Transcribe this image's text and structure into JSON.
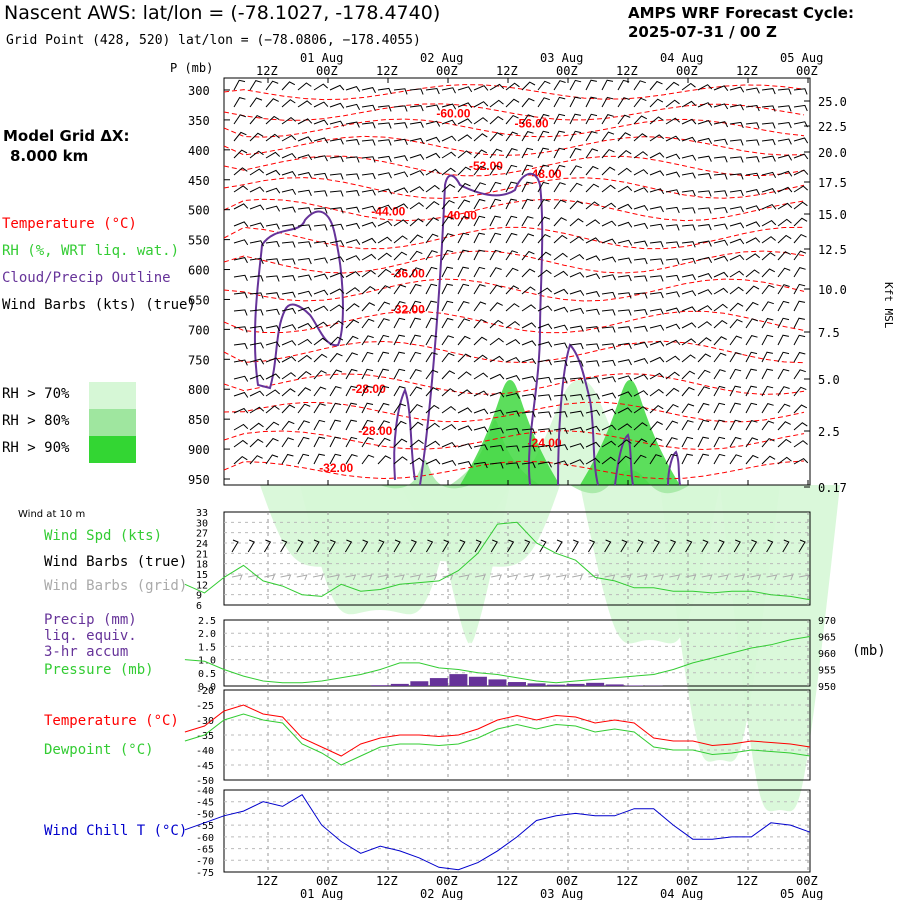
{
  "header": {
    "station": "Nascent AWS:  lat/lon = (-78.1027, -178.4740)",
    "grid_point": "Grid Point (428, 520) lat/lon = (−78.0806, −178.4055)",
    "cycle_line1": "AMPS WRF Forecast Cycle:",
    "cycle_line2": "2025-07-31 / 00  Z"
  },
  "model_grid": {
    "label": "Model Grid ΔX:",
    "value": "8.000 km"
  },
  "xsection_legend": {
    "temperature": "Temperature (°C)",
    "rh": "RH (%, WRT liq. wat.)",
    "cloud": "Cloud/Precip Outline",
    "wind": "Wind Barbs (kts) (true)"
  },
  "rh_legend": [
    {
      "label": "RH > 70%",
      "color": "#d6f7d6"
    },
    {
      "label": "RH > 80%",
      "color": "#9fe69f"
    },
    {
      "label": "RH > 90%",
      "color": "#33d633"
    }
  ],
  "colors": {
    "temperature": "#ff0000",
    "rh_light": "#d6f7d6",
    "rh_mid": "#9fe69f",
    "rh_dark": "#33d633",
    "cloud": "#663399",
    "wind_speed": "#33cc33",
    "pressure": "#33cc33",
    "precip": "#663399",
    "dewpoint": "#33cc33",
    "wind_chill": "#0000cc",
    "grid_barbs": "#aaaaaa"
  },
  "time_axis": {
    "top_hour_labels": [
      "12Z",
      "00Z",
      "12Z",
      "00Z",
      "12Z",
      "00Z",
      "12Z",
      "00Z",
      "12Z",
      "00Z"
    ],
    "top_date_labels": [
      "01 Aug",
      "02 Aug",
      "03 Aug",
      "04 Aug",
      "05 Aug"
    ],
    "bottom_hour_labels": [
      "12Z",
      "00Z",
      "12Z",
      "00Z",
      "12Z",
      "00Z",
      "12Z",
      "00Z",
      "12Z",
      "00Z"
    ],
    "bottom_date_labels": [
      "01 Aug",
      "02 Aug",
      "03 Aug",
      "04 Aug",
      "05 Aug"
    ]
  },
  "chart_data": [
    {
      "type": "heatmap",
      "panel": "cross-section",
      "ylabel_left": "P (mb)",
      "ylabel_right": "Kft MSL",
      "pressure_ticks": [
        "300",
        "350",
        "400",
        "450",
        "500",
        "550",
        "600",
        "650",
        "700",
        "750",
        "800",
        "850",
        "900",
        "950"
      ],
      "height_ticks": [
        "25.0",
        "22.5",
        "20.0",
        "17.5",
        "15.0",
        "12.5",
        "10.0",
        "7.5",
        "5.0",
        "2.5",
        "0.17"
      ],
      "temperature_contour_labels": [
        {
          "text": "-60.00",
          "hour": 42,
          "p": 339
        },
        {
          "text": "-56.00",
          "hour": 54,
          "p": 356
        },
        {
          "text": "-52.00",
          "hour": 47,
          "p": 427
        },
        {
          "text": "-48.00",
          "hour": 56,
          "p": 440
        },
        {
          "text": "-44.00",
          "hour": 32,
          "p": 503
        },
        {
          "text": "-40.00",
          "hour": 43,
          "p": 510
        },
        {
          "text": "-36.00",
          "hour": 35,
          "p": 607
        },
        {
          "text": "-32.00",
          "hour": 35,
          "p": 667
        },
        {
          "text": "-28.00",
          "hour": 29,
          "p": 800
        },
        {
          "text": "-28.00",
          "hour": 30,
          "p": 870
        },
        {
          "text": "-24.00",
          "hour": 56,
          "p": 890
        },
        {
          "text": "-32.00",
          "hour": 24,
          "p": 932
        }
      ]
    },
    {
      "type": "line",
      "panel": "wind",
      "title": "Wind at 10 m",
      "labels": [
        "Wind Spd (kts)",
        "Wind Barbs (true)",
        "Wind Barbs (grid)"
      ],
      "y_ticks": [
        "33",
        "30",
        "27",
        "24",
        "21",
        "18",
        "15",
        "12",
        "9",
        "6"
      ],
      "ylim": [
        6,
        33
      ],
      "x": [
        0,
        3,
        6,
        9,
        12,
        15,
        18,
        21,
        24,
        27,
        30,
        33,
        36,
        39,
        42,
        45,
        48,
        51,
        54,
        57,
        60,
        63,
        66,
        69,
        72,
        75,
        78,
        81,
        84,
        87,
        90,
        93,
        96
      ],
      "series": [
        {
          "name": "Wind Spd (kts)",
          "values": [
            12,
            9.5,
            14,
            17.5,
            13,
            11.5,
            9,
            8.5,
            12,
            10,
            10.5,
            12,
            12.5,
            13,
            16,
            21,
            29.5,
            30,
            24,
            21,
            19,
            14,
            13,
            11,
            11,
            10,
            10,
            9.5,
            10,
            10,
            9,
            8.5,
            7.5
          ]
        }
      ]
    },
    {
      "type": "bar",
      "panel": "precip-pressure",
      "labels": [
        "Precip (mm)",
        "liq. equiv.",
        "3-hr accum",
        "Pressure (mb)"
      ],
      "y_left_ticks": [
        "2.5",
        "2.0",
        "1.5",
        "1.0",
        "0.5",
        "0.0"
      ],
      "y_right_ticks": [
        "970",
        "965",
        "960",
        "955",
        "950"
      ],
      "ylabel_right": "(mb)",
      "ylim_precip": [
        0,
        2.5
      ],
      "ylim_pressure": [
        950,
        970
      ],
      "precip_x": [
        30,
        33,
        36,
        39,
        42,
        45,
        48,
        51,
        54,
        57,
        60,
        63,
        66,
        69,
        72
      ],
      "precip_values": [
        0.03,
        0.08,
        0.18,
        0.3,
        0.45,
        0.35,
        0.25,
        0.15,
        0.1,
        0.05,
        0.08,
        0.12,
        0.06,
        0.02,
        0.01
      ],
      "pressure_x": [
        0,
        3,
        6,
        9,
        12,
        15,
        18,
        21,
        24,
        27,
        30,
        33,
        36,
        39,
        42,
        45,
        48,
        51,
        54,
        57,
        60,
        63,
        66,
        69,
        72,
        75,
        78,
        81,
        84,
        87,
        90,
        93,
        96
      ],
      "pressure_values": [
        958,
        957.5,
        955,
        953,
        951.5,
        951,
        951,
        951.5,
        952.5,
        953.5,
        955,
        957,
        957,
        955.5,
        955,
        954,
        953.5,
        952.5,
        951.5,
        951,
        951.5,
        952,
        952.5,
        953,
        953.5,
        955,
        957,
        958.5,
        960,
        961.5,
        962.5,
        964,
        965
      ]
    },
    {
      "type": "line",
      "panel": "temperature-dewpoint",
      "labels": [
        "Temperature (°C)",
        "Dewpoint (°C)"
      ],
      "y_ticks": [
        "-20",
        "-25",
        "-30",
        "-35",
        "-40",
        "-45",
        "-50"
      ],
      "ylim": [
        -50,
        -20
      ],
      "x": [
        0,
        3,
        6,
        9,
        12,
        15,
        18,
        21,
        24,
        27,
        30,
        33,
        36,
        39,
        42,
        45,
        48,
        51,
        54,
        57,
        60,
        63,
        66,
        69,
        72,
        75,
        78,
        81,
        84,
        87,
        90,
        93,
        96
      ],
      "series": [
        {
          "name": "Temperature (°C)",
          "values": [
            -34,
            -32,
            -27,
            -25,
            -28,
            -29,
            -36,
            -39,
            -42,
            -38,
            -36,
            -35,
            -35,
            -35.5,
            -35,
            -33,
            -30,
            -28.5,
            -30,
            -28.5,
            -29,
            -31,
            -30,
            -31,
            -36,
            -37,
            -37,
            -38.5,
            -38,
            -37,
            -37.5,
            -38,
            -39
          ]
        },
        {
          "name": "Dewpoint (°C)",
          "values": [
            -37,
            -35,
            -30,
            -28,
            -30,
            -31,
            -38,
            -41,
            -45,
            -42,
            -39,
            -38,
            -38,
            -38.5,
            -38,
            -36,
            -33,
            -31.5,
            -33,
            -31.5,
            -32,
            -34,
            -33,
            -34,
            -39,
            -40,
            -40,
            -41.5,
            -41,
            -40,
            -40.5,
            -41,
            -42
          ]
        }
      ]
    },
    {
      "type": "line",
      "panel": "wind-chill",
      "labels": [
        "Wind Chill T (°C)"
      ],
      "y_ticks": [
        "-40",
        "-45",
        "-50",
        "-55",
        "-60",
        "-65",
        "-70",
        "-75"
      ],
      "ylim": [
        -75,
        -40
      ],
      "x": [
        0,
        3,
        6,
        9,
        12,
        15,
        18,
        21,
        24,
        27,
        30,
        33,
        36,
        39,
        42,
        45,
        48,
        51,
        54,
        57,
        60,
        63,
        66,
        69,
        72,
        75,
        78,
        81,
        84,
        87,
        90,
        93,
        96
      ],
      "series": [
        {
          "name": "Wind Chill T (°C)",
          "values": [
            -57,
            -54,
            -51,
            -49,
            -45,
            -47,
            -42,
            -55,
            -62,
            -67,
            -64,
            -66,
            -69,
            -73,
            -74,
            -71,
            -66,
            -60,
            -53,
            -51,
            -50,
            -51,
            -51,
            -48,
            -48,
            -55,
            -61,
            -61,
            -60,
            -60,
            -54,
            -55,
            -58
          ]
        }
      ]
    }
  ]
}
